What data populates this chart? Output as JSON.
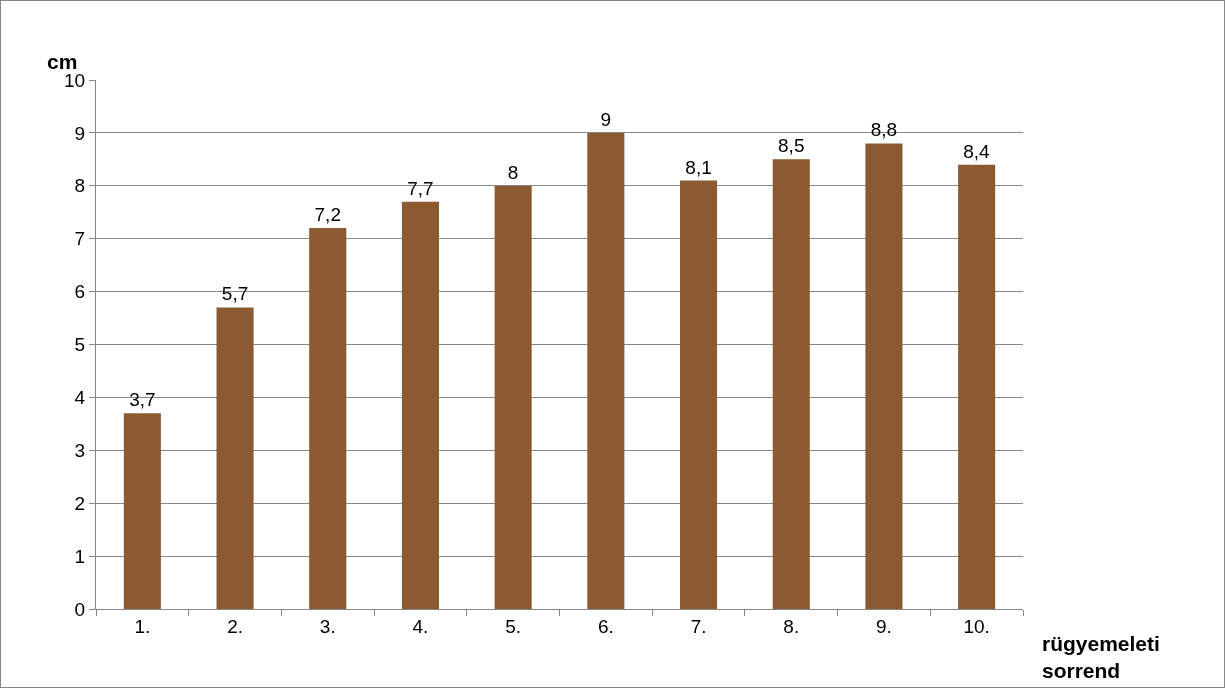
{
  "chart_data": {
    "type": "bar",
    "ylabel": "cm",
    "xlabel": "rügyemeleti sorrend",
    "categories": [
      "1.",
      "2.",
      "3.",
      "4.",
      "5.",
      "6.",
      "7.",
      "8.",
      "9.",
      "10."
    ],
    "values": [
      3.7,
      5.7,
      7.2,
      7.7,
      8,
      9,
      8.1,
      8.5,
      8.8,
      8.4
    ],
    "value_labels": [
      "3,7",
      "5,7",
      "7,2",
      "7,7",
      "8",
      "9",
      "8,1",
      "8,5",
      "8,8",
      "8,4"
    ],
    "color": "#8b5a30",
    "ylim": [
      0,
      10
    ],
    "yticks": [
      0,
      1,
      2,
      3,
      4,
      5,
      6,
      7,
      8,
      9,
      10
    ],
    "grid": "y",
    "legend": false
  }
}
